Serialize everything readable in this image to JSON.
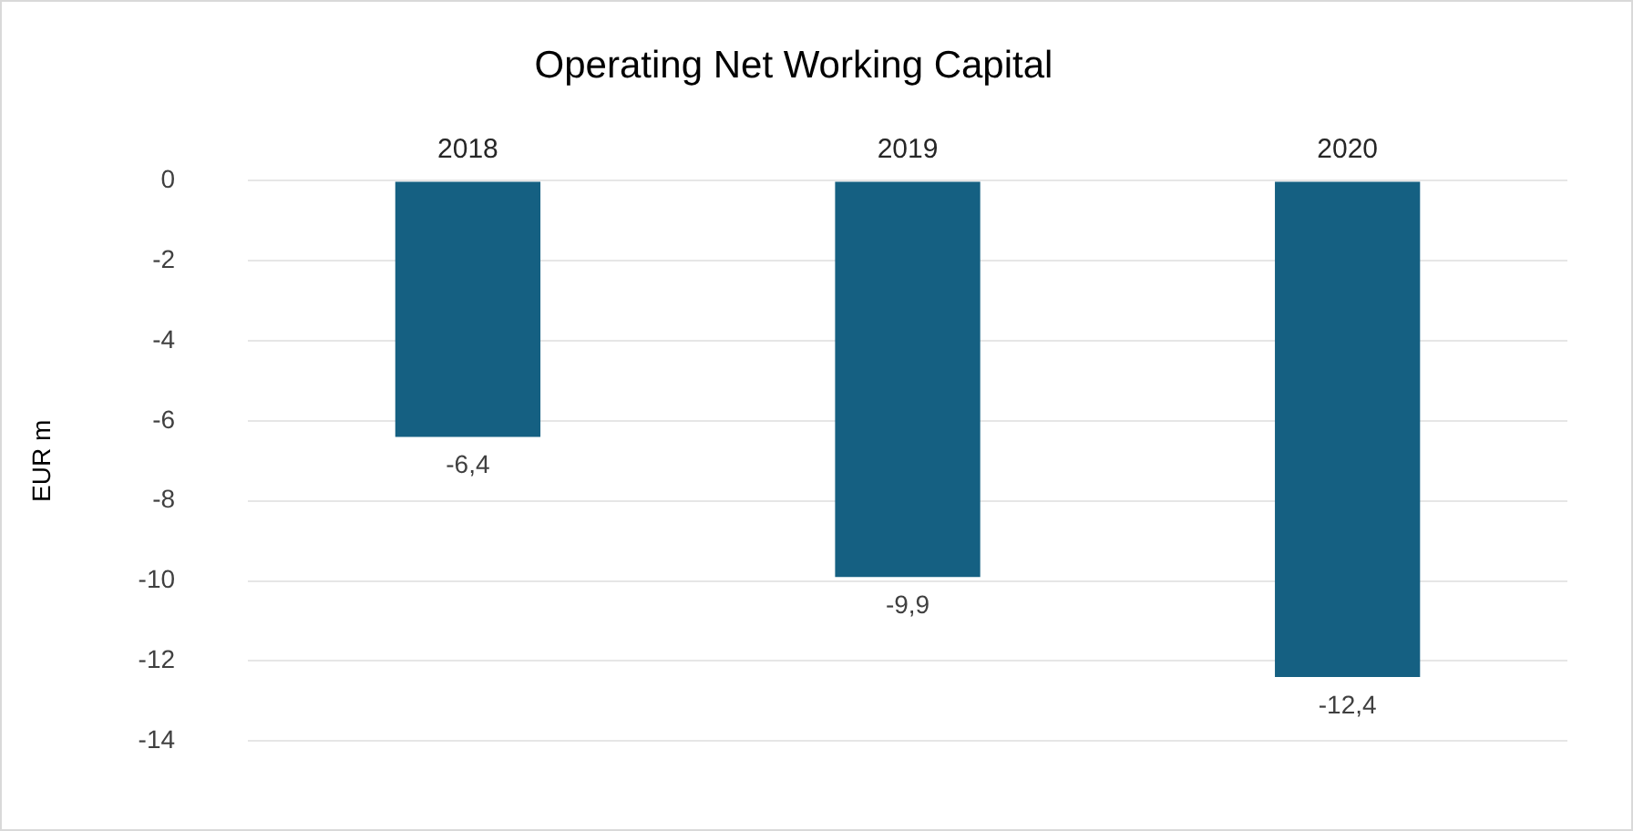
{
  "chart_data": {
    "type": "bar",
    "title": "Operating Net Working Capital",
    "ylabel": "EUR m",
    "categories": [
      "2018",
      "2019",
      "2020"
    ],
    "values": [
      -6.4,
      -9.9,
      -12.4
    ],
    "color": "#156082",
    "value_labels": [
      "-6,4",
      "-9,9",
      "-12,4"
    ],
    "ylim": [
      -14,
      0
    ],
    "yticks": [
      0,
      -2,
      -4,
      -6,
      -8,
      -10,
      -12,
      -14
    ],
    "grid": "y"
  }
}
